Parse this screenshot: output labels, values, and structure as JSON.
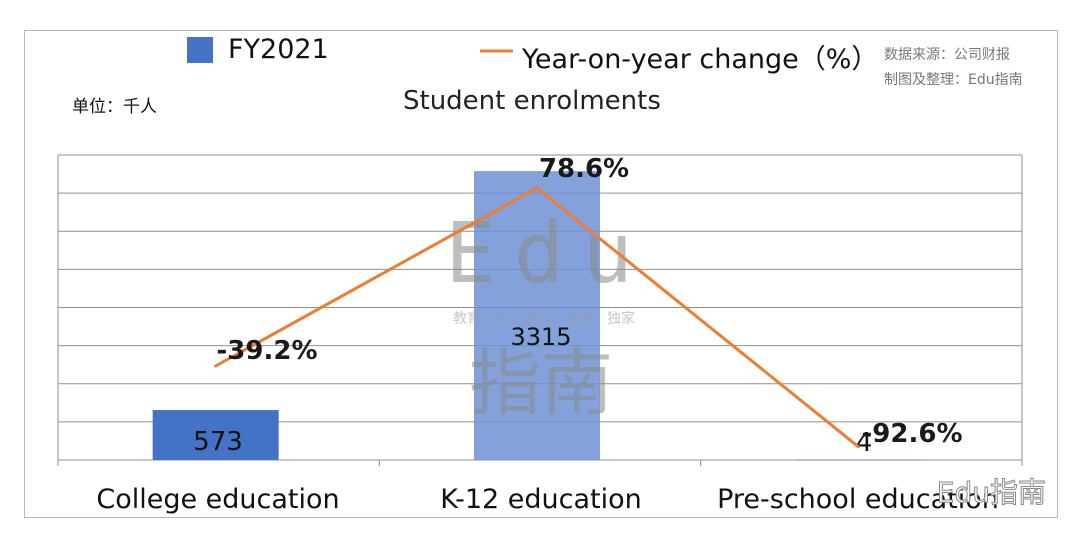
{
  "legend": {
    "bar_label": "FY2021",
    "line_label": "Year-on-year change（%）"
  },
  "source": {
    "line1": "数据来源：公司财报",
    "line2": "制图及整理：Edu指南"
  },
  "unit": "单位：千人",
  "chart_data": {
    "type": "bar",
    "title": "Student enrolments",
    "categories": [
      "College education",
      "K-12 education",
      "Pre-school education"
    ],
    "series": [
      {
        "name": "FY2021",
        "kind": "bar",
        "values": [
          573,
          3315,
          4
        ],
        "labels": [
          "573",
          "3315",
          "4"
        ],
        "color": "#4472c4"
      },
      {
        "name": "Year-on-year change（%）",
        "kind": "line",
        "values": [
          -39.2,
          78.6,
          -92.6
        ],
        "labels": [
          "-39.2%",
          "78.6%",
          "-92.6%"
        ],
        "color": "#ed7d31"
      }
    ],
    "grid": true,
    "legend_position": "top"
  },
  "watermark": {
    "latin": "Edu",
    "cjk": "指南",
    "tagline": "教育行业，前沿、深度、独家",
    "corner": "Edu指南"
  }
}
